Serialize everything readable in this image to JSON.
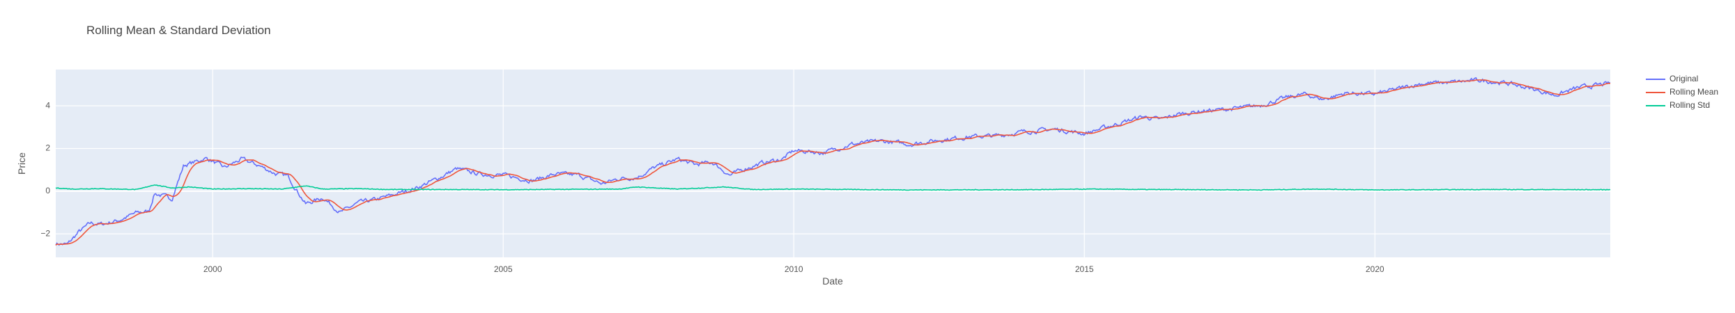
{
  "chart_data": {
    "type": "line",
    "title": "Rolling Mean & Standard Deviation",
    "xlabel": "Date",
    "ylabel": "Price",
    "xlim": [
      1997.3,
      2024.05
    ],
    "ylim": [
      -3.1,
      5.7
    ],
    "x_ticks": [
      2000,
      2005,
      2010,
      2015,
      2020
    ],
    "y_ticks": [
      -2,
      0,
      2,
      4
    ],
    "grid": true,
    "legend_position": "right",
    "background": "#e5ecf6",
    "series": [
      {
        "name": "Original",
        "color": "#636efa",
        "anchors": [
          [
            1997.3,
            -2.45
          ],
          [
            1997.5,
            -2.5
          ],
          [
            1997.7,
            -1.9
          ],
          [
            1997.9,
            -1.5
          ],
          [
            1998.1,
            -1.55
          ],
          [
            1998.4,
            -1.35
          ],
          [
            1998.7,
            -1.0
          ],
          [
            1998.9,
            -0.95
          ],
          [
            1999.0,
            -0.1
          ],
          [
            1999.3,
            -0.35
          ],
          [
            1999.5,
            1.2
          ],
          [
            1999.9,
            1.55
          ],
          [
            2000.2,
            1.1
          ],
          [
            2000.5,
            1.5
          ],
          [
            2000.8,
            1.2
          ],
          [
            2001.1,
            0.8
          ],
          [
            2001.3,
            0.7
          ],
          [
            2001.6,
            -0.6
          ],
          [
            2001.9,
            -0.3
          ],
          [
            2002.2,
            -1.0
          ],
          [
            2002.5,
            -0.55
          ],
          [
            2002.8,
            -0.4
          ],
          [
            2003.2,
            -0.1
          ],
          [
            2003.5,
            0.15
          ],
          [
            2003.8,
            0.5
          ],
          [
            2004.2,
            1.05
          ],
          [
            2004.6,
            0.8
          ],
          [
            2005.0,
            0.75
          ],
          [
            2005.5,
            0.5
          ],
          [
            2005.9,
            0.8
          ],
          [
            2006.3,
            0.75
          ],
          [
            2006.7,
            0.35
          ],
          [
            2007.0,
            0.6
          ],
          [
            2007.3,
            0.65
          ],
          [
            2007.6,
            1.1
          ],
          [
            2008.0,
            1.5
          ],
          [
            2008.3,
            1.25
          ],
          [
            2008.6,
            1.35
          ],
          [
            2008.9,
            0.75
          ],
          [
            2009.2,
            1.1
          ],
          [
            2009.5,
            1.35
          ],
          [
            2009.8,
            1.5
          ],
          [
            2010.0,
            1.9
          ],
          [
            2010.3,
            1.85
          ],
          [
            2010.5,
            1.8
          ],
          [
            2011.0,
            2.2
          ],
          [
            2011.5,
            2.35
          ],
          [
            2012.0,
            2.2
          ],
          [
            2012.5,
            2.4
          ],
          [
            2013.0,
            2.55
          ],
          [
            2013.5,
            2.6
          ],
          [
            2014.0,
            2.8
          ],
          [
            2014.5,
            2.9
          ],
          [
            2015.0,
            2.7
          ],
          [
            2015.5,
            3.1
          ],
          [
            2016.0,
            3.5
          ],
          [
            2016.3,
            3.35
          ],
          [
            2016.6,
            3.6
          ],
          [
            2017.0,
            3.75
          ],
          [
            2017.5,
            3.85
          ],
          [
            2018.0,
            4.0
          ],
          [
            2018.5,
            4.4
          ],
          [
            2018.8,
            4.55
          ],
          [
            2019.1,
            4.3
          ],
          [
            2019.5,
            4.6
          ],
          [
            2020.0,
            4.55
          ],
          [
            2020.4,
            4.8
          ],
          [
            2020.8,
            5.05
          ],
          [
            2021.3,
            5.1
          ],
          [
            2021.8,
            5.2
          ],
          [
            2022.3,
            5.05
          ],
          [
            2022.7,
            4.8
          ],
          [
            2023.1,
            4.5
          ],
          [
            2023.5,
            4.85
          ],
          [
            2024.05,
            5.05
          ]
        ]
      },
      {
        "name": "Rolling Mean",
        "color": "#ef553b",
        "anchors": []
      },
      {
        "name": "Rolling Std",
        "color": "#00cc96",
        "anchors": [
          [
            1997.3,
            0.15
          ],
          [
            1997.6,
            0.1
          ],
          [
            1998.0,
            0.12
          ],
          [
            1998.7,
            0.08
          ],
          [
            1999.0,
            0.3
          ],
          [
            1999.3,
            0.15
          ],
          [
            1999.6,
            0.2
          ],
          [
            2000.0,
            0.1
          ],
          [
            2000.6,
            0.12
          ],
          [
            2001.2,
            0.1
          ],
          [
            2001.6,
            0.25
          ],
          [
            2001.9,
            0.1
          ],
          [
            2002.5,
            0.12
          ],
          [
            2003.0,
            0.08
          ],
          [
            2004.0,
            0.08
          ],
          [
            2005.0,
            0.07
          ],
          [
            2007.0,
            0.1
          ],
          [
            2007.3,
            0.2
          ],
          [
            2008.0,
            0.1
          ],
          [
            2008.8,
            0.2
          ],
          [
            2009.3,
            0.08
          ],
          [
            2010.0,
            0.1
          ],
          [
            2012.0,
            0.06
          ],
          [
            2014.0,
            0.07
          ],
          [
            2015.2,
            0.1
          ],
          [
            2016.0,
            0.08
          ],
          [
            2018.0,
            0.06
          ],
          [
            2019.0,
            0.1
          ],
          [
            2020.0,
            0.06
          ],
          [
            2022.0,
            0.08
          ],
          [
            2024.05,
            0.07
          ]
        ]
      }
    ]
  }
}
